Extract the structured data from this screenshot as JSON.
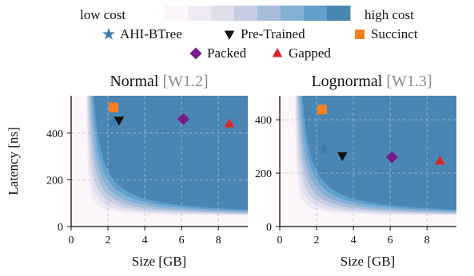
{
  "colorbar": {
    "low_label": "low cost",
    "high_label": "high cost",
    "colors": [
      "#fcf5fa",
      "#f0eaf4",
      "#dfdeed",
      "#c7cee4",
      "#a6bddb",
      "#85b0d6",
      "#61a0cb",
      "#4a86b4"
    ]
  },
  "legend": {
    "items": [
      {
        "label": "AHI-BTree",
        "marker": "star",
        "color": "#3a79b0"
      },
      {
        "label": "Pre-Trained",
        "marker": "triangle-down",
        "color": "#111111"
      },
      {
        "label": "Succinct",
        "marker": "square",
        "color": "#f57f20"
      },
      {
        "label": "Packed",
        "marker": "diamond",
        "color": "#7a1a8a"
      },
      {
        "label": "Gapped",
        "marker": "triangle-up",
        "color": "#e0242a"
      }
    ]
  },
  "chart_data": [
    {
      "type": "scatter",
      "title": "Normal",
      "title_note": "[W1.2]",
      "xlabel": "Size [GB]",
      "ylabel": "Latency [ns]",
      "xlim": [
        0,
        9.6
      ],
      "ylim": [
        0,
        560
      ],
      "xticks": [
        0,
        2,
        4,
        6,
        8
      ],
      "yticks": [
        0,
        200,
        400
      ],
      "grid": true,
      "background": "cost contours (low cost near origin, high cost top-right)",
      "series": [
        {
          "name": "AHI-BTree",
          "x": 2.3,
          "y": 445
        },
        {
          "name": "Pre-Trained",
          "x": 2.6,
          "y": 455
        },
        {
          "name": "Succinct",
          "x": 2.3,
          "y": 510
        },
        {
          "name": "Packed",
          "x": 6.1,
          "y": 460
        },
        {
          "name": "Gapped",
          "x": 8.6,
          "y": 440
        }
      ]
    },
    {
      "type": "scatter",
      "title": "Lognormal",
      "title_note": "[W1.3]",
      "xlabel": "Size [GB]",
      "ylabel": "",
      "xlim": [
        0,
        9.6
      ],
      "ylim": [
        0,
        490
      ],
      "xticks": [
        0,
        2,
        4,
        6,
        8
      ],
      "yticks": [
        0,
        200,
        400
      ],
      "grid": true,
      "background": "cost contours (low cost near origin, high cost top-right)",
      "series": [
        {
          "name": "AHI-BTree",
          "x": 2.4,
          "y": 290
        },
        {
          "name": "Pre-Trained",
          "x": 3.4,
          "y": 265
        },
        {
          "name": "Succinct",
          "x": 2.3,
          "y": 438
        },
        {
          "name": "Packed",
          "x": 6.1,
          "y": 260
        },
        {
          "name": "Gapped",
          "x": 8.7,
          "y": 245
        }
      ]
    }
  ]
}
